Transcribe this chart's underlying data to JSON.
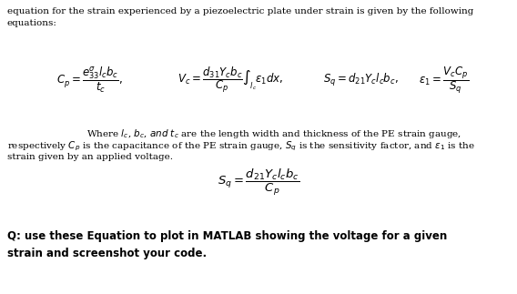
{
  "bg_color": "#ffffff",
  "text_color": "#000000",
  "figsize": [
    5.68,
    3.23
  ],
  "dpi": 100,
  "line1": "equation for the strain experienced by a piezoelectric plate under strain is given by the following",
  "line2": "equations:",
  "where_line": "Where $l_c$, $b_c$, $and$ $t_c$ are the length width and thickness of the PE strain gauge,",
  "resp_line": "respectively $C_p$ is the capacitance of the PE strain gauge, $S_q$ is the sensitivity factor, and $\\varepsilon_1$ is the",
  "strain_line": "strain given by an applied voltage.",
  "q_line1": "Q: use these Equation to plot in MATLAB showing the voltage for a given",
  "q_line2": "strain and screenshot your code.",
  "eq1": "$C_p = \\dfrac{e^{\\sigma}_{33}l_c b_c}{t_c},$",
  "eq2": "$V_c = \\dfrac{d_{31}Y_c b_c}{C_p}\\int_{l_c} \\varepsilon_1 dx,$",
  "eq3": "$S_q = d_{21}Y_c l_c b_c,$",
  "eq4": "$\\varepsilon_1 = \\dfrac{V_c C_p}{S_q}$",
  "sq_eq": "$S_q = \\dfrac{d_{21}Y_c l_c b_c}{C_p}$",
  "fs_text": 7.5,
  "fs_eq": 8.5,
  "fs_bold": 8.5,
  "fs_sq": 9.5
}
